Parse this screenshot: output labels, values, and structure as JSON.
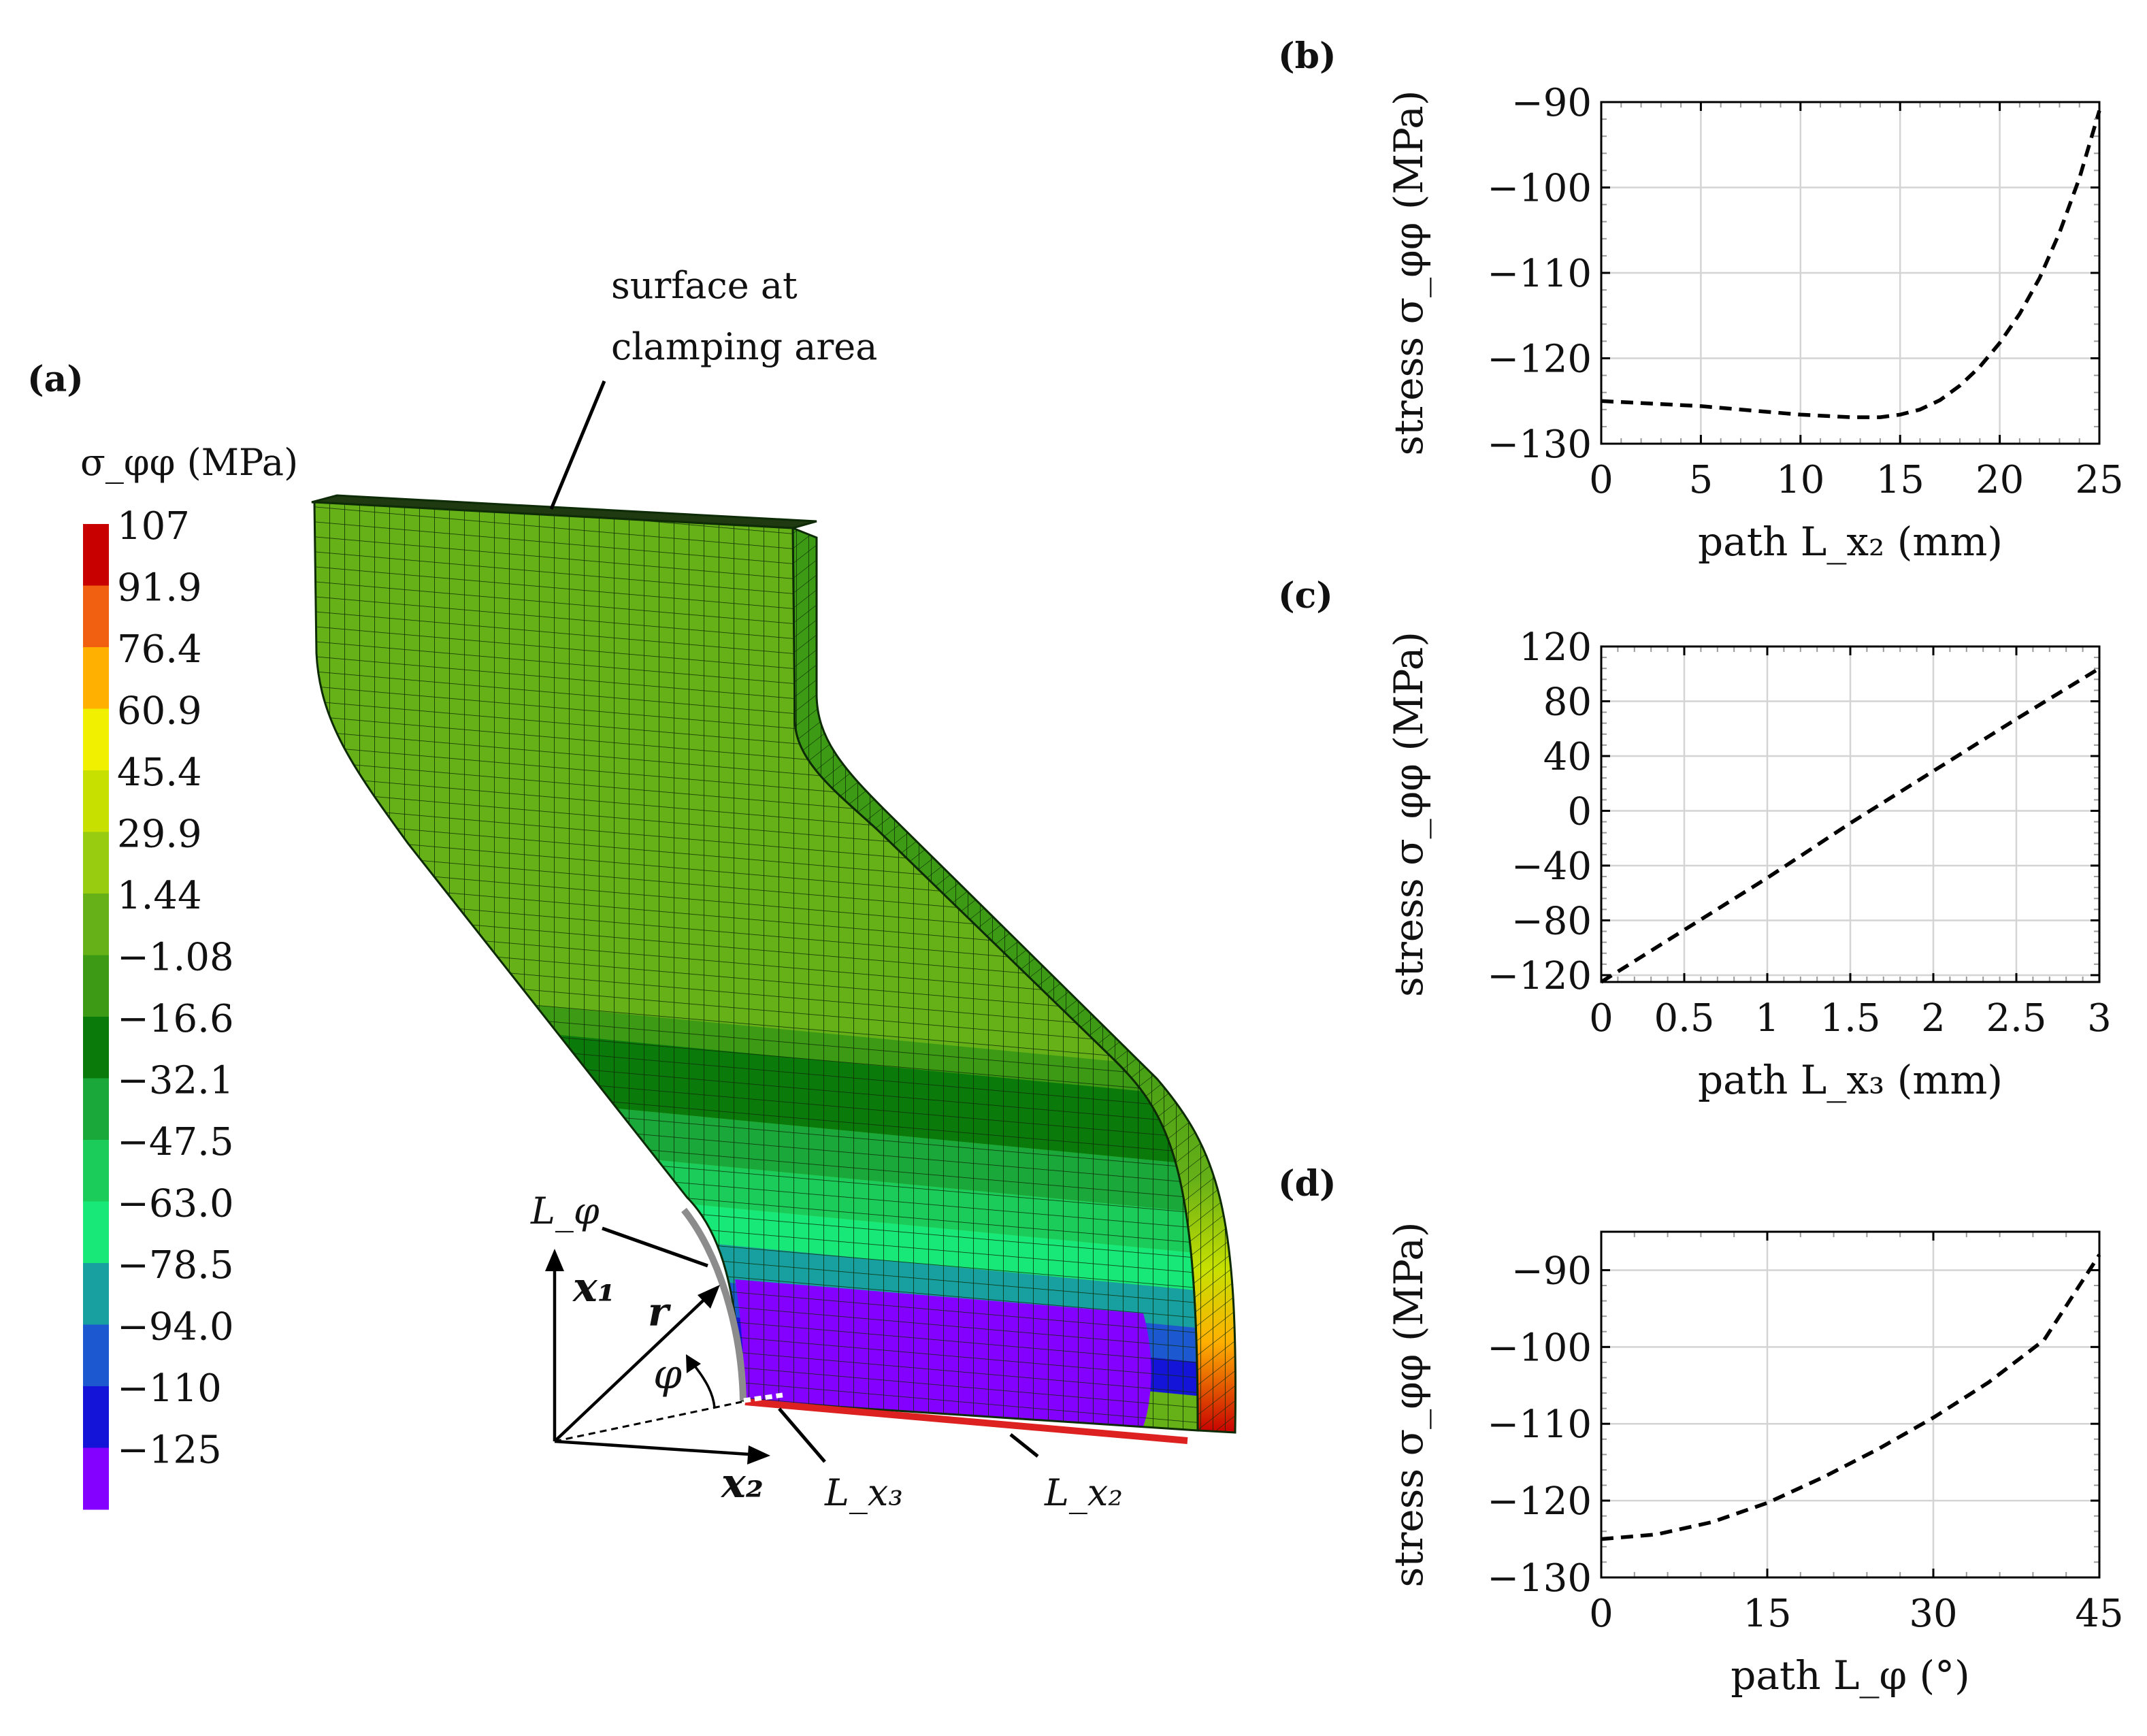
{
  "panel_a": {
    "label": "(a)",
    "annotation_line1": "surface at",
    "annotation_line2": "clamping area",
    "colorbar_title": "σ_φφ (MPa)",
    "colorbar_values": [
      "107",
      "91.9",
      "76.4",
      "60.9",
      "45.4",
      "29.9",
      "1.44",
      "−1.08",
      "−16.6",
      "−32.1",
      "−47.5",
      "−63.0",
      "−78.5",
      "−94.0",
      "−110",
      "−125"
    ],
    "colorbar_colors": [
      "#c80000",
      "#f06010",
      "#ffb000",
      "#f0f000",
      "#c8e000",
      "#98cc10",
      "#66b018",
      "#3c9a14",
      "#0a7a0a",
      "#1aa83a",
      "#1ccc5a",
      "#18e878",
      "#18a0a0",
      "#1c58d0",
      "#1414d8",
      "#8400ff"
    ],
    "axis_x1": "x₁",
    "axis_x2": "x₂",
    "axis_r": "r",
    "angle_phi": "φ",
    "path_Lphi": "L_φ",
    "path_Lx3": "L_x₃",
    "path_Lx2": "L_x₂",
    "path_colors": {
      "Lphi": "#8c8c8c",
      "Lx3": "#ffffff",
      "Lx2": "#dd2020"
    }
  },
  "chart_data": [
    {
      "panel": "(b)",
      "type": "line",
      "xlabel": "path L_x₂ (mm)",
      "ylabel": "stress σ_φφ (MPa)",
      "xlim": [
        0,
        25
      ],
      "ylim": [
        -130,
        -90
      ],
      "xticks": [
        0,
        5,
        10,
        15,
        20,
        25
      ],
      "xtick_labels": [
        "0",
        "5",
        "10",
        "15",
        "20",
        "25"
      ],
      "yticks": [
        -130,
        -120,
        -110,
        -100,
        -90
      ],
      "ytick_labels": [
        "−130",
        "−120",
        "−110",
        "−100",
        "−90"
      ],
      "grid": true,
      "series": [
        {
          "name": "σ_φφ",
          "style": "dashed",
          "x": [
            0,
            2.5,
            5,
            7.5,
            10,
            12.5,
            14,
            15,
            16,
            17,
            18,
            19,
            20,
            21,
            22,
            23,
            24,
            25
          ],
          "y": [
            -125,
            -125.3,
            -125.6,
            -126.1,
            -126.6,
            -126.9,
            -126.9,
            -126.6,
            -126,
            -124.9,
            -123.2,
            -121,
            -118.2,
            -114.8,
            -110.6,
            -105.3,
            -98.9,
            -91
          ]
        }
      ]
    },
    {
      "panel": "(c)",
      "type": "line",
      "xlabel": "path L_x₃ (mm)",
      "ylabel": "stress σ_φφ (MPa)",
      "xlim": [
        0,
        3
      ],
      "ylim": [
        -125,
        120
      ],
      "xticks": [
        0,
        0.5,
        1,
        1.5,
        2,
        2.5,
        3
      ],
      "xtick_labels": [
        "0",
        "0.5",
        "1",
        "1.5",
        "2",
        "2.5",
        "3"
      ],
      "yticks": [
        -120,
        -80,
        -40,
        0,
        40,
        80,
        120
      ],
      "ytick_labels": [
        "−120",
        "−80",
        "−40",
        "0",
        "40",
        "80",
        "120"
      ],
      "grid": true,
      "series": [
        {
          "name": "σ_φφ",
          "style": "dashed",
          "x": [
            0,
            0.5,
            1,
            1.5,
            2,
            2.5,
            3
          ],
          "y": [
            -125,
            -87,
            -49,
            -9,
            29,
            67,
            104
          ]
        }
      ]
    },
    {
      "panel": "(d)",
      "type": "line",
      "xlabel": "path L_φ (°)",
      "ylabel": "stress σ_φφ (MPa)",
      "xlim": [
        0,
        45
      ],
      "ylim": [
        -130,
        -85
      ],
      "xticks": [
        0,
        15,
        30,
        45
      ],
      "xtick_labels": [
        "0",
        "15",
        "30",
        "45"
      ],
      "yticks": [
        -130,
        -120,
        -110,
        -100,
        -90
      ],
      "ytick_labels": [
        "−130",
        "−120",
        "−110",
        "−100",
        "−90"
      ],
      "grid": true,
      "series": [
        {
          "name": "σ_φφ",
          "style": "dashed",
          "x": [
            0,
            5,
            10,
            15,
            20,
            25,
            30,
            35,
            40,
            45
          ],
          "y": [
            -125,
            -124.4,
            -122.8,
            -120.3,
            -117,
            -113.3,
            -109.2,
            -104.6,
            -99.1,
            -88
          ]
        }
      ]
    }
  ]
}
